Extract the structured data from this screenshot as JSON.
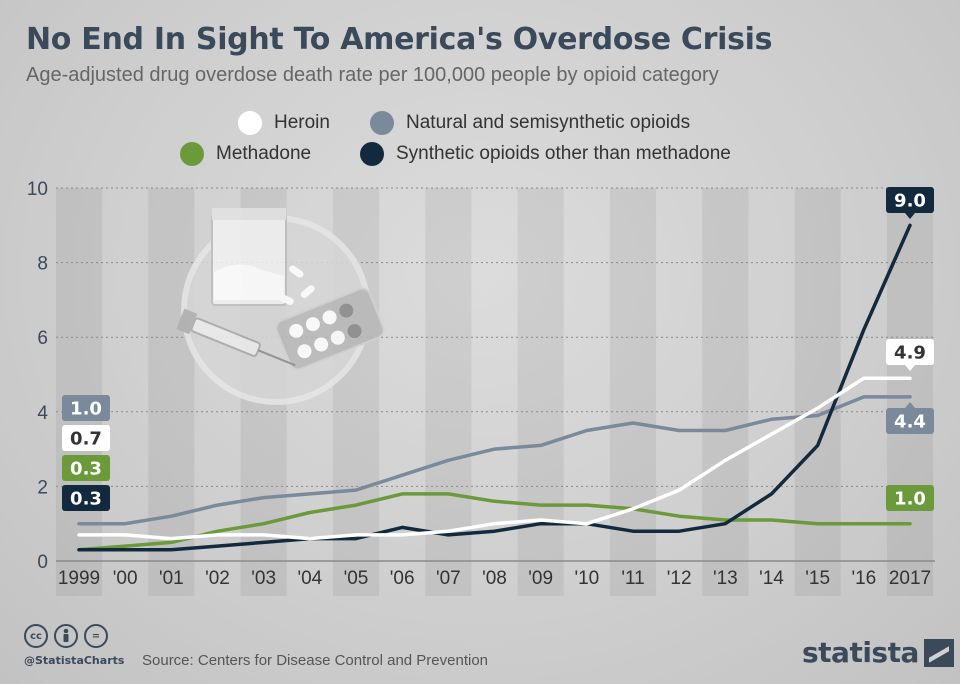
{
  "title": "No End In Sight To America's Overdose Crisis",
  "subtitle": "Age-adjusted drug overdose death rate per 100,000 people by opioid category",
  "colors": {
    "heroin": "#ffffff",
    "natural": "#7a8a9a",
    "methadone": "#6a9a3a",
    "synthetic": "#132a3e",
    "text": "#3a4a5a"
  },
  "chart_data": {
    "type": "line",
    "title": "No End In Sight To America's Overdose Crisis",
    "ylim": [
      0,
      10
    ],
    "yticks": [
      "0",
      "2",
      "4",
      "6",
      "8",
      "10"
    ],
    "categories": [
      "1999",
      "'00",
      "'01",
      "'02",
      "'03",
      "'04",
      "'05",
      "'06",
      "'07",
      "'08",
      "'09",
      "'10",
      "'11",
      "'12",
      "'13",
      "'14",
      "'15",
      "'16",
      "2017"
    ],
    "series": [
      {
        "key": "natural",
        "name": "Natural and semisynthetic opioids",
        "values": [
          1.0,
          1.0,
          1.2,
          1.5,
          1.7,
          1.8,
          1.9,
          2.3,
          2.7,
          3.0,
          3.1,
          3.5,
          3.7,
          3.5,
          3.5,
          3.8,
          3.9,
          4.4,
          4.4
        ],
        "start_label": "1.0",
        "end_label": "4.4"
      },
      {
        "key": "methadone",
        "name": "Methadone",
        "values": [
          0.3,
          0.4,
          0.5,
          0.8,
          1.0,
          1.3,
          1.5,
          1.8,
          1.8,
          1.6,
          1.5,
          1.5,
          1.4,
          1.2,
          1.1,
          1.1,
          1.0,
          1.0,
          1.0
        ],
        "start_label": "0.3",
        "end_label": "1.0"
      },
      {
        "key": "synthetic",
        "name": "Synthetic opioids other than methadone",
        "values": [
          0.3,
          0.3,
          0.3,
          0.4,
          0.5,
          0.6,
          0.6,
          0.9,
          0.7,
          0.8,
          1.0,
          1.0,
          0.8,
          0.8,
          1.0,
          1.8,
          3.1,
          6.2,
          9.0
        ],
        "start_label": "0.3",
        "end_label": "9.0"
      },
      {
        "key": "heroin",
        "name": "Heroin",
        "values": [
          0.7,
          0.7,
          0.6,
          0.7,
          0.7,
          0.6,
          0.7,
          0.7,
          0.8,
          1.0,
          1.1,
          1.0,
          1.4,
          1.9,
          2.7,
          3.4,
          4.1,
          4.9,
          4.9
        ],
        "start_label": "0.7",
        "end_label": "4.9"
      }
    ]
  },
  "footer": {
    "cc_icons": [
      "cc",
      "by",
      "="
    ],
    "handle": "@StatistaCharts",
    "source": "Source: Centers for Disease Control and Prevention",
    "brand": "statista"
  }
}
